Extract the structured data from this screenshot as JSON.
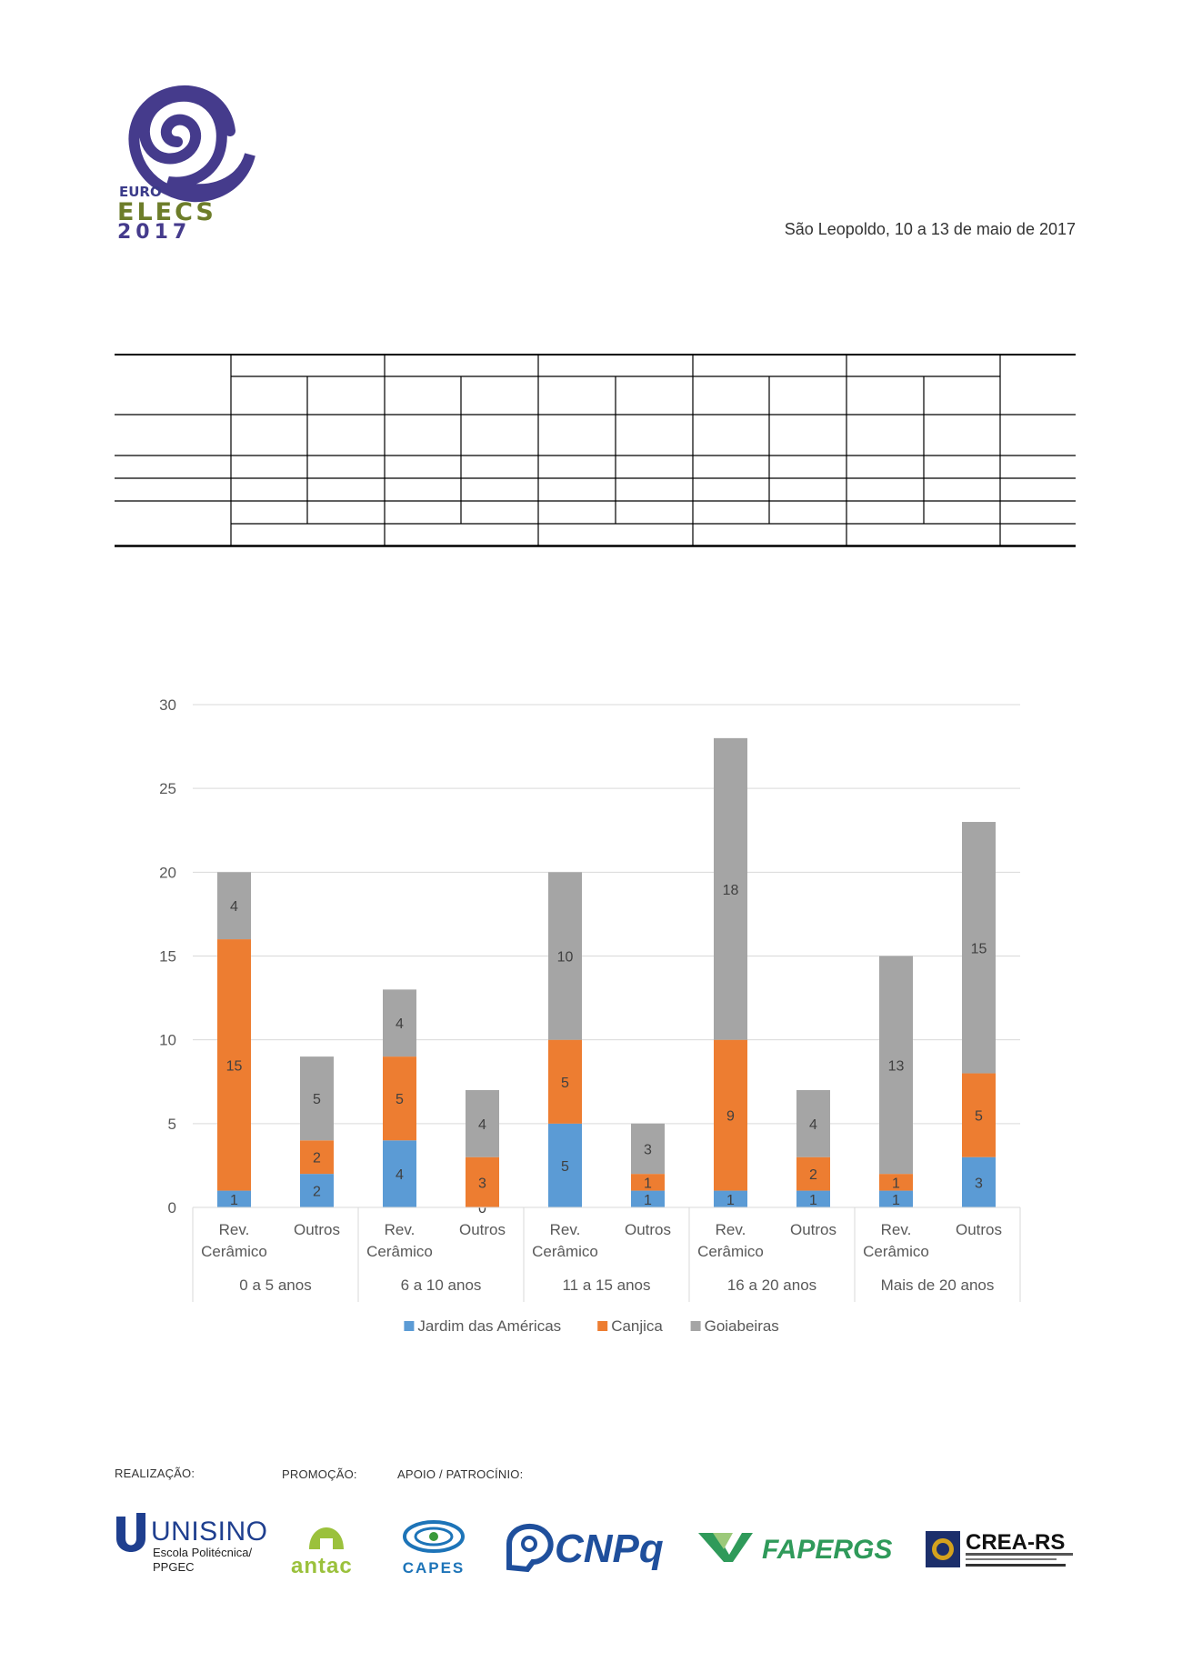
{
  "header": {
    "logo": {
      "line1": "EURO",
      "line2": "ELECS",
      "line3": "2017"
    },
    "date_line": "São Leopoldo, 10 a 13 de maio de 2017"
  },
  "chart_data": {
    "type": "bar",
    "stacked": true,
    "groups": [
      "0 a 5 anos",
      "6 a 10 anos",
      "11 a 15 anos",
      "16 a 20 anos",
      "Mais de 20 anos"
    ],
    "subcategories": [
      "Rev. Cerâmico",
      "Outros"
    ],
    "categories": [
      "Rev. Cerâmico | 0 a 5 anos",
      "Outros | 0 a 5 anos",
      "Rev. Cerâmico | 6 a 10 anos",
      "Outros | 6 a 10 anos",
      "Rev. Cerâmico | 11 a 15 anos",
      "Outros | 11 a 15 anos",
      "Rev. Cerâmico | 16 a 20 anos",
      "Outros | 16 a 20 anos",
      "Rev. Cerâmico | Mais de 20 anos",
      "Outros | Mais de 20 anos"
    ],
    "series": [
      {
        "name": "Jardim das Américas",
        "color": "#5B9BD5",
        "values": [
          1,
          2,
          4,
          0,
          5,
          1,
          1,
          1,
          1,
          3
        ]
      },
      {
        "name": "Canjica",
        "color": "#ED7D31",
        "values": [
          15,
          2,
          5,
          3,
          5,
          1,
          9,
          2,
          1,
          5
        ]
      },
      {
        "name": "Goiabeiras",
        "color": "#A5A5A5",
        "values": [
          4,
          5,
          4,
          4,
          10,
          3,
          18,
          4,
          13,
          15
        ]
      }
    ],
    "ylim": [
      0,
      30
    ],
    "yticks": [
      0,
      5,
      10,
      15,
      20,
      25,
      30
    ],
    "grid": true,
    "legend": "bottom",
    "xlabel": "",
    "ylabel": ""
  },
  "footer": {
    "realizacao": "REALIZAÇÃO:",
    "promocao": "PROMOÇÃO:",
    "apoio": "APOIO / PATROCÍNIO:",
    "logos": {
      "unisinos": {
        "name": "UNISINOS",
        "sub1": "Escola Politécnica/",
        "sub2": "PPGEC"
      },
      "antac": "antac",
      "capes": "CAPES",
      "cnpq": "CNPq",
      "fapergs": "FAPERGS",
      "crea": "CREA-RS"
    }
  }
}
